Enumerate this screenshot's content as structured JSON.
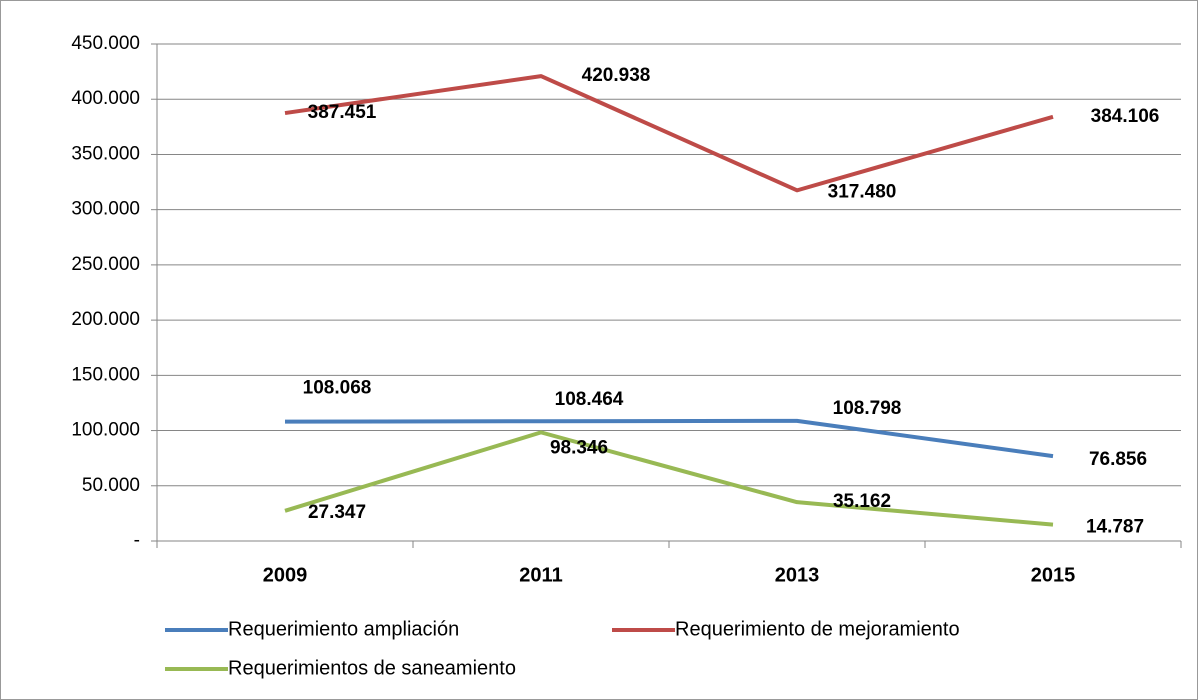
{
  "chart_data": {
    "type": "line",
    "categories": [
      "2009",
      "2011",
      "2013",
      "2015"
    ],
    "series": [
      {
        "name": "Requerimiento ampliación",
        "color": "#4a7ebb",
        "values": [
          108068,
          108464,
          108798,
          76856
        ],
        "value_labels": [
          "108.068",
          "108.464",
          "108.798",
          "76.856"
        ]
      },
      {
        "name": "Requerimiento de mejoramiento",
        "color": "#be4b48",
        "values": [
          387451,
          420938,
          317480,
          384106
        ],
        "value_labels": [
          "387.451",
          "420.938",
          "317.480",
          "384.106"
        ]
      },
      {
        "name": "Requerimientos de saneamiento",
        "color": "#98b954",
        "values": [
          27347,
          98346,
          35162,
          14787
        ],
        "value_labels": [
          "27.347",
          "98.346",
          "35.162",
          "14.787"
        ]
      }
    ],
    "ylim": [
      0,
      450000
    ],
    "yticks": [
      {
        "value": 0,
        "label": "-"
      },
      {
        "value": 50000,
        "label": "50.000"
      },
      {
        "value": 100000,
        "label": "100.000"
      },
      {
        "value": 150000,
        "label": "150.000"
      },
      {
        "value": 200000,
        "label": "200.000"
      },
      {
        "value": 250000,
        "label": "250.000"
      },
      {
        "value": 300000,
        "label": "300.000"
      },
      {
        "value": 350000,
        "label": "350.000"
      },
      {
        "value": 400000,
        "label": "400.000"
      },
      {
        "value": 450000,
        "label": "450.000"
      }
    ],
    "grid": true,
    "legend": "bottom"
  }
}
